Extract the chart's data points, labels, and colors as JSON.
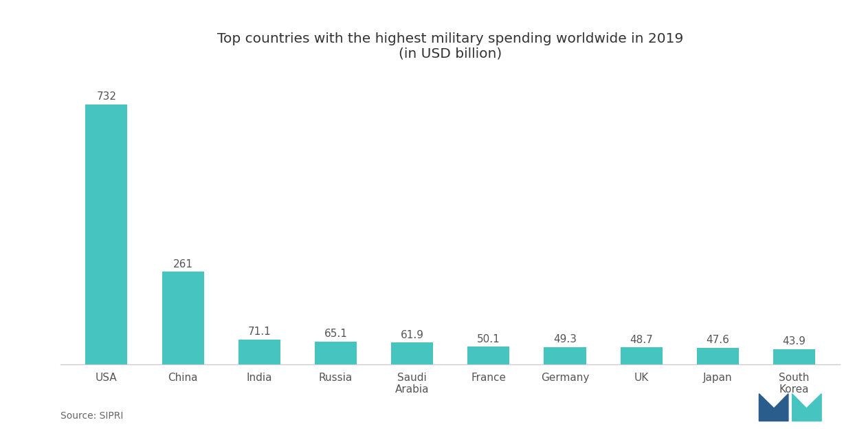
{
  "title_line1": "Top countries with the highest military spending worldwide in 2019",
  "title_line2": "(in USD billion)",
  "categories": [
    "USA",
    "China",
    "India",
    "Russia",
    "Saudi\nArabia",
    "France",
    "Germany",
    "UK",
    "Japan",
    "South\nKorea"
  ],
  "values": [
    732,
    261,
    71.1,
    65.1,
    61.9,
    50.1,
    49.3,
    48.7,
    47.6,
    43.9
  ],
  "bar_color": "#45c4c0",
  "source_text": "Source: SIPRI",
  "background_color": "#ffffff",
  "ylim": [
    0,
    820
  ],
  "title_fontsize": 14.5,
  "tick_fontsize": 11,
  "label_fontsize": 11,
  "source_fontsize": 10,
  "logo_dark": "#2a5d8c",
  "logo_teal": "#45c4c0"
}
